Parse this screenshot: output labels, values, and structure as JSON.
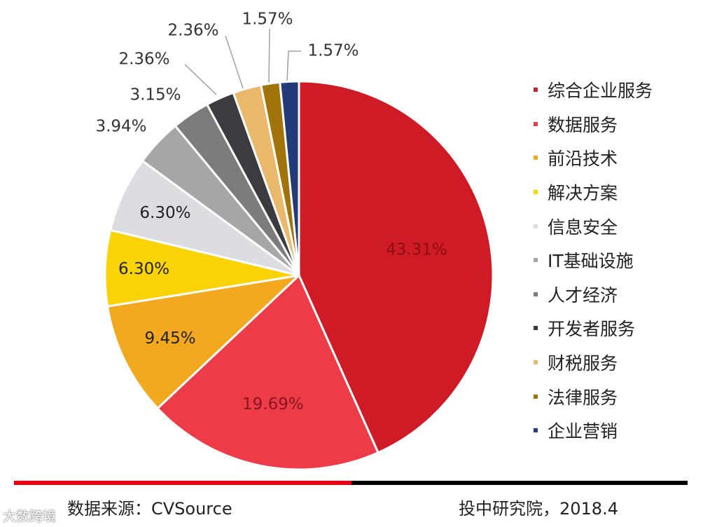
{
  "chart_data": {
    "type": "pie",
    "title": "",
    "categories": [
      "综合企业服务",
      "数据服务",
      "前沿技术",
      "解决方案",
      "信息安全",
      "IT基础设施",
      "人才经济",
      "开发者服务",
      "财税服务",
      "法律服务",
      "企业营销"
    ],
    "values": [
      43.31,
      19.69,
      9.45,
      6.3,
      6.3,
      3.94,
      3.15,
      2.36,
      2.36,
      1.57,
      1.57
    ],
    "labels": [
      "43.31%",
      "19.69%",
      "9.45%",
      "6.30%",
      "6.30%",
      "3.94%",
      "3.15%",
      "2.36%",
      "2.36%",
      "1.57%",
      "1.57%"
    ],
    "colors": [
      "#cf1b26",
      "#ed3b48",
      "#f3a91f",
      "#f9d305",
      "#dcdde1",
      "#a6a6a8",
      "#7c7c7e",
      "#3c3c40",
      "#e9b86b",
      "#a2730b",
      "#243b7a"
    ],
    "start_angle_deg": 0,
    "direction": "clockwise",
    "legend_position": "right"
  },
  "footer": {
    "source": "数据来源：CVSource",
    "org": "投中研究院，2018.4"
  },
  "watermark": "大数跨境"
}
